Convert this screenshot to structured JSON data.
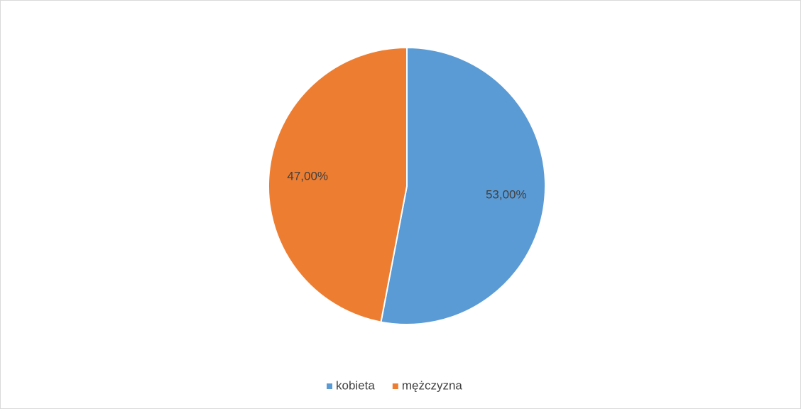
{
  "chart_data": {
    "type": "pie",
    "categories": [
      "kobieta",
      "mężczyzna"
    ],
    "values": [
      53,
      47
    ],
    "value_labels": [
      "53,00%",
      "47,00%"
    ],
    "colors": [
      "#5b9bd5",
      "#ed7d31"
    ],
    "legend": "bottom"
  }
}
